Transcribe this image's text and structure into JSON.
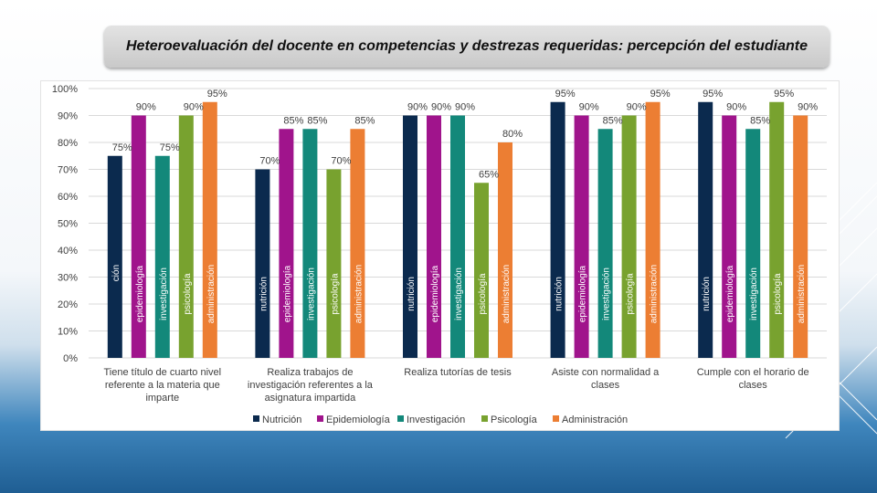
{
  "slide": {
    "title": "Heteroevaluación del docente en competencias y destrezas requeridas: percepción del estudiante"
  },
  "colors": {
    "nutricion": "#0b2a4e",
    "epidemiologia": "#a0148c",
    "investigacion": "#13887a",
    "psicologia": "#78a22f",
    "administracion": "#ec7e33",
    "grid": "#d9d9d9",
    "text": "#404040"
  },
  "chart_data": {
    "type": "bar",
    "title": "",
    "xlabel": "",
    "ylabel": "",
    "ylim": [
      0,
      100
    ],
    "yticks": [
      "0%",
      "10%",
      "20%",
      "30%",
      "40%",
      "50%",
      "60%",
      "70%",
      "80%",
      "90%",
      "100%"
    ],
    "categories": [
      "Tiene título de cuarto nivel referente a la materia que imparte",
      "Realiza trabajos de investigación referentes a la asignatura impartida",
      "Realiza tutorías de tesis",
      "Asiste con normalidad a clases",
      "Cumple con el horario de clases"
    ],
    "category_lines": [
      [
        "Tiene título de cuarto nivel",
        "referente a la materia que",
        "imparte"
      ],
      [
        "Realiza trabajos de",
        "investigación referentes a la",
        "asignatura impartida"
      ],
      [
        "Realiza tutorías de tesis"
      ],
      [
        "Asiste con normalidad a",
        "clases"
      ],
      [
        "Cumple con el horario de",
        "clases"
      ]
    ],
    "legend_position": "bottom",
    "series": [
      {
        "key": "nutricion",
        "name": "Nutrición",
        "values": [
          75,
          70,
          90,
          95,
          95
        ],
        "bar_labels": [
          "ción",
          "nutrición",
          "nutrición",
          "nutrición",
          "nutrición"
        ],
        "data_labels": [
          "75%",
          "70%",
          "90%",
          "95%",
          "95%"
        ]
      },
      {
        "key": "epidemiologia",
        "name": "Epidemiología",
        "values": [
          90,
          85,
          90,
          90,
          90
        ],
        "bar_labels": [
          "epidemiología",
          "epidemiología",
          "epidemiología",
          "epidemiología",
          "epidemiología"
        ],
        "data_labels": [
          "90%",
          "85%",
          "90%",
          "90%",
          "90%"
        ]
      },
      {
        "key": "investigacion",
        "name": "Investigación",
        "values": [
          75,
          85,
          90,
          85,
          85
        ],
        "bar_labels": [
          "investigación",
          "investigación",
          "investigación",
          "investigación",
          "investigación"
        ],
        "data_labels": [
          "75%",
          "85%",
          "90%",
          "85%",
          "85%"
        ]
      },
      {
        "key": "psicologia",
        "name": "Psicología",
        "values": [
          90,
          70,
          65,
          90,
          95
        ],
        "bar_labels": [
          "psicología",
          "psicología",
          "psicología",
          "psicología",
          "psicología"
        ],
        "data_labels": [
          "90%",
          "70%",
          "65%",
          "90%",
          "95%"
        ]
      },
      {
        "key": "administracion",
        "name": "Administración",
        "values": [
          95,
          85,
          80,
          95,
          90
        ],
        "bar_labels": [
          "administración",
          "administración",
          "administración",
          "administración",
          "administración"
        ],
        "data_labels": [
          "95%",
          "85%",
          "80%",
          "95%",
          "90%"
        ]
      }
    ]
  }
}
